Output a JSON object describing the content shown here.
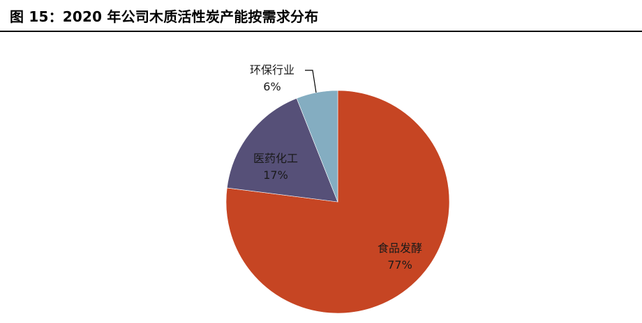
{
  "figure": {
    "title": "图 15：2020 年公司木质活性炭产能按需求分布"
  },
  "chart_data": {
    "type": "pie",
    "slices": [
      {
        "name": "食品发酵",
        "value": 77,
        "label": "77%",
        "color": "#c64523"
      },
      {
        "name": "医药化工",
        "value": 17,
        "label": "17%",
        "color": "#565078"
      },
      {
        "name": "环保行业",
        "value": 6,
        "label": "6%",
        "color": "#84adc1"
      }
    ],
    "start": "12 o'clock",
    "direction": "clockwise",
    "legend": "none",
    "label_position": "inside; 环保行业 outside with leader line"
  }
}
